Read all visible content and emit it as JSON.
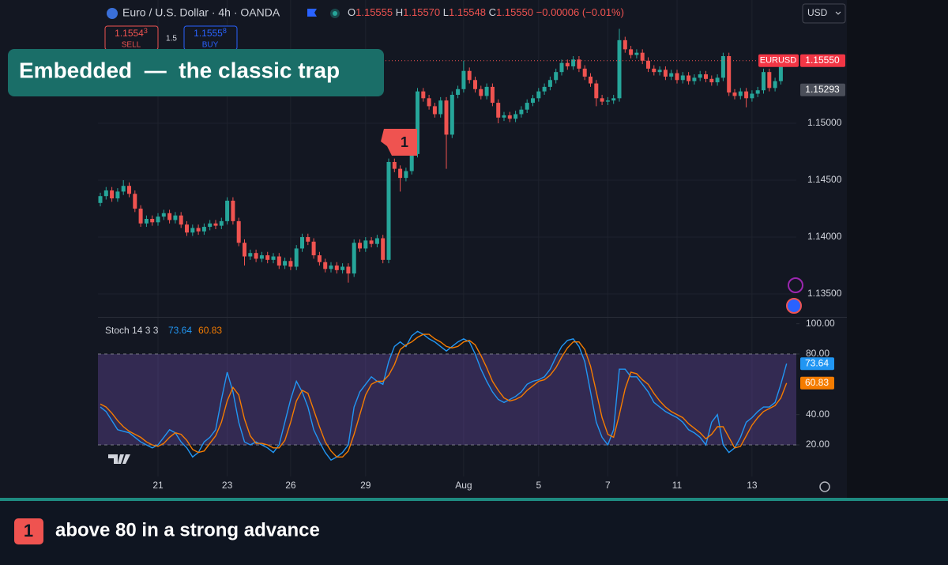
{
  "header": {
    "symbol": "Euro / U.S. Dollar · 4h · OANDA",
    "ohlc": [
      {
        "label": "O",
        "value": "1.15555"
      },
      {
        "label": "H",
        "value": "1.15570"
      },
      {
        "label": "L",
        "value": "1.15548"
      },
      {
        "label": "C",
        "value": "1.15550"
      }
    ],
    "change": "−0.00006 (−0.01%)",
    "currency": "USD",
    "sell": {
      "price": "1.1554",
      "pip": "3",
      "label": "SELL"
    },
    "spread": "1.5",
    "buy": {
      "price": "1.1555",
      "pip": "8",
      "label": "BUY"
    }
  },
  "annotation": "Embedded  —  the classic trap",
  "marker": "1",
  "footnote": {
    "badge": "1",
    "text": "above 80 in a strong advance"
  },
  "chart_data": [
    {
      "type": "candlestick",
      "up_color": "#26a69a",
      "down_color": "#ef5350",
      "symbol_tag": "EURUSD",
      "last_price": {
        "value": 1.1555,
        "label": "1.15550"
      },
      "price_marker": {
        "value": 1.15293,
        "label": "1.15293"
      },
      "ylim": [
        1.13306,
        1.16083
      ],
      "yticks": [
        {
          "value": 1.15,
          "label": "1.15000"
        },
        {
          "value": 1.145,
          "label": "1.14500"
        },
        {
          "value": 1.14,
          "label": "1.14000"
        },
        {
          "value": 1.135,
          "label": "1.13500"
        }
      ],
      "xticks": [
        {
          "value": 10,
          "label": "21"
        },
        {
          "value": 22,
          "label": "23"
        },
        {
          "value": 33,
          "label": "26"
        },
        {
          "value": 46,
          "label": "29"
        },
        {
          "value": 63,
          "label": "Aug"
        },
        {
          "value": 76,
          "label": "5"
        },
        {
          "value": 88,
          "label": "7"
        },
        {
          "value": 100,
          "label": "11"
        },
        {
          "value": 113,
          "label": "13"
        }
      ],
      "grid": true,
      "candles": {
        "open": [
          1.143,
          1.1436,
          1.1441,
          1.1434,
          1.144,
          1.1445,
          1.1438,
          1.1425,
          1.1412,
          1.1416,
          1.1413,
          1.1418,
          1.1421,
          1.1415,
          1.1419,
          1.1411,
          1.1404,
          1.1408,
          1.1405,
          1.1409,
          1.1412,
          1.141,
          1.1414,
          1.1432,
          1.1414,
          1.1395,
          1.1383,
          1.1386,
          1.1381,
          1.1384,
          1.138,
          1.1383,
          1.1375,
          1.1379,
          1.1374,
          1.139,
          1.14,
          1.1396,
          1.1384,
          1.1378,
          1.1372,
          1.1375,
          1.1371,
          1.1374,
          1.1368,
          1.1395,
          1.139,
          1.1397,
          1.1394,
          1.1399,
          1.138,
          1.1466,
          1.146,
          1.1452,
          1.1458,
          1.1473,
          1.1528,
          1.1522,
          1.1515,
          1.1508,
          1.152,
          1.149,
          1.1525,
          1.153,
          1.1546,
          1.1538,
          1.153,
          1.1524,
          1.1532,
          1.1518,
          1.1505,
          1.1507,
          1.1504,
          1.1508,
          1.1512,
          1.1518,
          1.1522,
          1.1528,
          1.1532,
          1.1538,
          1.1545,
          1.1553,
          1.155,
          1.1556,
          1.1548,
          1.1541,
          1.1535,
          1.1522,
          1.1519,
          1.152,
          1.1522,
          1.1573,
          1.1565,
          1.156,
          1.1562,
          1.1555,
          1.1548,
          1.1545,
          1.1547,
          1.1541,
          1.1544,
          1.1538,
          1.1542,
          1.1537,
          1.154,
          1.1543,
          1.1539,
          1.1536,
          1.154,
          1.1559,
          1.1527,
          1.1524,
          1.1528,
          1.1522,
          1.1526,
          1.1529,
          1.1545,
          1.1531,
          1.1537,
          1.15555
        ],
        "high": [
          1.1439,
          1.1444,
          1.1444,
          1.1443,
          1.145,
          1.1448,
          1.1441,
          1.1428,
          1.1419,
          1.1419,
          1.1421,
          1.1424,
          1.1424,
          1.1422,
          1.1422,
          1.1414,
          1.1411,
          1.1411,
          1.1412,
          1.1415,
          1.1415,
          1.1417,
          1.1435,
          1.1435,
          1.1417,
          1.1398,
          1.1389,
          1.1389,
          1.1387,
          1.1387,
          1.1386,
          1.1386,
          1.1382,
          1.1382,
          1.1393,
          1.1403,
          1.1403,
          1.1399,
          1.1387,
          1.1381,
          1.1378,
          1.1378,
          1.1377,
          1.1377,
          1.1398,
          1.1398,
          1.14,
          1.14,
          1.1402,
          1.1402,
          1.1469,
          1.1469,
          1.1463,
          1.1461,
          1.1476,
          1.1531,
          1.1531,
          1.1525,
          1.1518,
          1.1523,
          1.1523,
          1.1528,
          1.1533,
          1.1555,
          1.1549,
          1.1541,
          1.1533,
          1.1535,
          1.1535,
          1.1521,
          1.151,
          1.151,
          1.1511,
          1.1515,
          1.1521,
          1.1525,
          1.1531,
          1.1535,
          1.1541,
          1.1548,
          1.1556,
          1.1556,
          1.1559,
          1.1559,
          1.1551,
          1.1544,
          1.1538,
          1.1525,
          1.1523,
          1.1525,
          1.1583,
          1.1576,
          1.1568,
          1.1565,
          1.1565,
          1.1558,
          1.1551,
          1.155,
          1.155,
          1.1547,
          1.1547,
          1.1545,
          1.1545,
          1.1543,
          1.1546,
          1.1546,
          1.1542,
          1.1543,
          1.1562,
          1.1562,
          1.153,
          1.1531,
          1.1531,
          1.1529,
          1.1532,
          1.1548,
          1.1548,
          1.154,
          1.1558,
          1.1557
        ],
        "low": [
          1.1427,
          1.1433,
          1.1431,
          1.1431,
          1.1437,
          1.1435,
          1.1422,
          1.1409,
          1.1409,
          1.141,
          1.141,
          1.1415,
          1.1412,
          1.1412,
          1.1408,
          1.1401,
          1.1401,
          1.1402,
          1.1402,
          1.1406,
          1.1407,
          1.1407,
          1.1411,
          1.1411,
          1.1392,
          1.1375,
          1.138,
          1.1378,
          1.1378,
          1.1377,
          1.1377,
          1.1372,
          1.1372,
          1.1371,
          1.1371,
          1.1387,
          1.1393,
          1.1381,
          1.1375,
          1.1369,
          1.1369,
          1.1368,
          1.1368,
          1.136,
          1.1365,
          1.1387,
          1.1387,
          1.1391,
          1.1391,
          1.1377,
          1.1377,
          1.1457,
          1.144,
          1.1449,
          1.1455,
          1.147,
          1.1519,
          1.1512,
          1.1505,
          1.1505,
          1.146,
          1.1487,
          1.1522,
          1.1527,
          1.1535,
          1.1527,
          1.1521,
          1.1521,
          1.1515,
          1.15,
          1.1502,
          1.1501,
          1.1501,
          1.1505,
          1.1509,
          1.1515,
          1.1519,
          1.1525,
          1.1529,
          1.1535,
          1.1542,
          1.1547,
          1.1547,
          1.1545,
          1.1538,
          1.1532,
          1.1515,
          1.1516,
          1.1516,
          1.1517,
          1.1519,
          1.1562,
          1.1557,
          1.1557,
          1.1552,
          1.1545,
          1.1542,
          1.1542,
          1.1538,
          1.1538,
          1.1535,
          1.1535,
          1.1534,
          1.1534,
          1.1537,
          1.1536,
          1.1533,
          1.1533,
          1.1537,
          1.1524,
          1.1521,
          1.1521,
          1.1514,
          1.1519,
          1.1523,
          1.1526,
          1.1528,
          1.1528,
          1.1534,
          1.15548
        ],
        "close": [
          1.1436,
          1.1441,
          1.1434,
          1.144,
          1.1445,
          1.1438,
          1.1425,
          1.1412,
          1.1416,
          1.1413,
          1.1418,
          1.1421,
          1.1415,
          1.1419,
          1.1411,
          1.1404,
          1.1408,
          1.1405,
          1.1409,
          1.1412,
          1.141,
          1.1414,
          1.1432,
          1.1414,
          1.1395,
          1.1383,
          1.1386,
          1.1381,
          1.1384,
          1.138,
          1.1383,
          1.1375,
          1.1379,
          1.1374,
          1.139,
          1.14,
          1.1396,
          1.1384,
          1.1378,
          1.1372,
          1.1375,
          1.1371,
          1.1374,
          1.1368,
          1.1395,
          1.139,
          1.1397,
          1.1394,
          1.1399,
          1.138,
          1.1466,
          1.146,
          1.1452,
          1.1458,
          1.1473,
          1.1528,
          1.1522,
          1.1515,
          1.1508,
          1.152,
          1.149,
          1.1525,
          1.153,
          1.1546,
          1.1538,
          1.153,
          1.1524,
          1.1532,
          1.1518,
          1.1505,
          1.1507,
          1.1504,
          1.1508,
          1.1512,
          1.1518,
          1.1522,
          1.1528,
          1.1532,
          1.1538,
          1.1545,
          1.1553,
          1.155,
          1.1556,
          1.1548,
          1.1541,
          1.1535,
          1.1522,
          1.1519,
          1.152,
          1.1522,
          1.1573,
          1.1565,
          1.156,
          1.1562,
          1.1555,
          1.1548,
          1.1545,
          1.1547,
          1.1541,
          1.1544,
          1.1538,
          1.1542,
          1.1537,
          1.154,
          1.1543,
          1.1539,
          1.1536,
          1.154,
          1.1559,
          1.1527,
          1.1524,
          1.1528,
          1.1522,
          1.1526,
          1.1529,
          1.1545,
          1.1531,
          1.1537,
          1.1555,
          1.1555
        ]
      }
    },
    {
      "type": "line",
      "title": "Stoch 14 3 3",
      "ylim": [
        -0.87,
        103.48
      ],
      "yticks": [
        {
          "value": 100,
          "label": "100.00"
        },
        {
          "value": 80,
          "label": "80.00"
        },
        {
          "value": 40,
          "label": "40.00"
        },
        {
          "value": 20,
          "label": "20.00"
        }
      ],
      "band": [
        20,
        80
      ],
      "band_color": "#7e57c2",
      "series": [
        {
          "name": "73.64",
          "color": "#2196f3",
          "values": [
            45,
            42,
            36,
            30,
            29,
            28,
            25,
            22,
            20,
            18,
            20,
            25,
            30,
            28,
            22,
            18,
            12,
            15,
            22,
            25,
            30,
            50,
            68,
            55,
            35,
            22,
            20,
            22,
            20,
            18,
            15,
            20,
            35,
            50,
            62,
            55,
            45,
            30,
            22,
            15,
            10,
            12,
            15,
            20,
            45,
            55,
            60,
            65,
            62,
            60,
            75,
            85,
            88,
            85,
            92,
            95,
            93,
            90,
            88,
            85,
            82,
            85,
            88,
            90,
            88,
            80,
            70,
            62,
            55,
            50,
            48,
            50,
            52,
            55,
            60,
            62,
            63,
            65,
            70,
            78,
            85,
            89,
            90,
            85,
            75,
            55,
            35,
            25,
            20,
            30,
            70,
            70,
            65,
            65,
            60,
            55,
            48,
            45,
            42,
            40,
            38,
            35,
            30,
            28,
            25,
            20,
            35,
            40,
            20,
            15,
            18,
            25,
            35,
            38,
            42,
            45,
            45,
            48,
            60,
            73.64
          ]
        },
        {
          "name": "60.83",
          "color": "#f57c00",
          "values": [
            47,
            45,
            41,
            36,
            32,
            29,
            27,
            25,
            22,
            20,
            19,
            21,
            25,
            28,
            27,
            23,
            17,
            15,
            16,
            21,
            26,
            35,
            49,
            58,
            53,
            37,
            26,
            21,
            21,
            20,
            18,
            18,
            23,
            35,
            49,
            56,
            54,
            43,
            32,
            22,
            16,
            12,
            12,
            16,
            27,
            40,
            53,
            60,
            62,
            62,
            66,
            73,
            83,
            86,
            88,
            91,
            93,
            93,
            90,
            88,
            85,
            84,
            85,
            88,
            89,
            86,
            79,
            71,
            62,
            56,
            51,
            49,
            50,
            52,
            56,
            59,
            62,
            63,
            66,
            71,
            78,
            84,
            88,
            88,
            83,
            72,
            55,
            38,
            27,
            25,
            40,
            57,
            68,
            67,
            63,
            60,
            54,
            49,
            45,
            42,
            40,
            38,
            34,
            31,
            28,
            24,
            27,
            32,
            32,
            25,
            18,
            19,
            26,
            33,
            38,
            42,
            44,
            46,
            51,
            60.83
          ]
        }
      ]
    }
  ]
}
